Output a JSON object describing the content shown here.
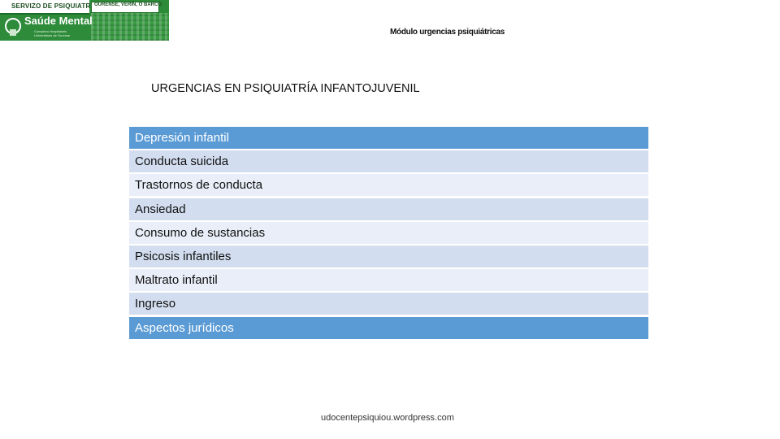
{
  "logo": {
    "service": "SERVIZO DE PSIQUIATRÍA",
    "area": "OURENSE, VERÍN, O BARCO",
    "brand": "Saúde Mental",
    "department": "Complexo Hospitalario Universitario de Ourense"
  },
  "header": {
    "module": "Módulo urgencias psiquiátricas"
  },
  "page": {
    "title": "URGENCIAS EN PSIQUIATRÍA INFANTOJUVENIL"
  },
  "topics": [
    "Depresión infantil",
    "Conducta suicida",
    "Trastornos de conducta",
    "Ansiedad",
    "Consumo de sustancias",
    "Psicosis infantiles",
    "Maltrato infantil",
    "Ingreso",
    "Aspectos jurídicos"
  ],
  "footer": {
    "url": "udocentepsiquiou.wordpress.com"
  },
  "colors": {
    "highlight": "#5b9bd5",
    "row": "#d2ddef",
    "row_alt": "#e9eef8",
    "logo_green": "#2e8b3a"
  }
}
